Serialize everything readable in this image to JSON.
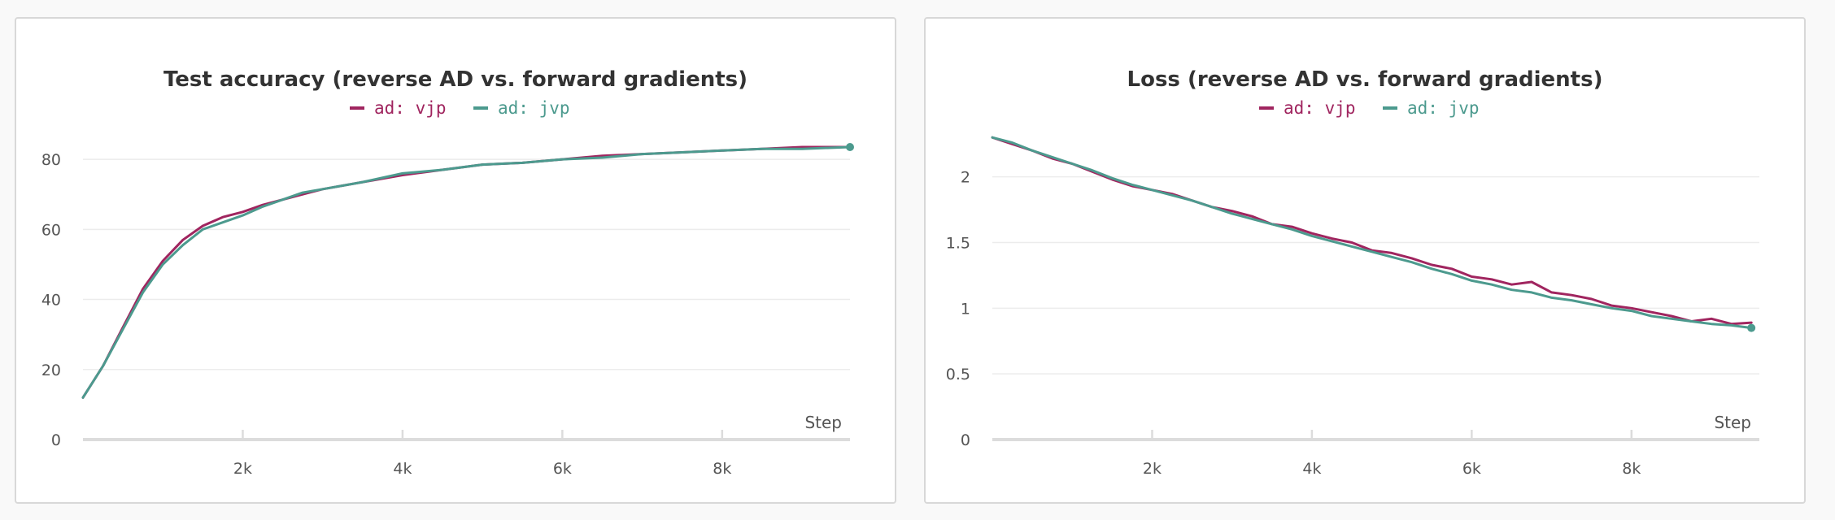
{
  "chart_data": [
    {
      "type": "line",
      "title": "Test accuracy (reverse AD vs. forward gradients)",
      "xlabel": "Step",
      "ylabel": "",
      "xlim": [
        0,
        9600
      ],
      "ylim": [
        0,
        90
      ],
      "xticks": [
        2000,
        4000,
        6000,
        8000
      ],
      "xtick_labels": [
        "2k",
        "4k",
        "6k",
        "8k"
      ],
      "yticks": [
        0,
        20,
        40,
        60,
        80
      ],
      "ytick_labels": [
        "0",
        "20",
        "40",
        "60",
        "80"
      ],
      "grid": true,
      "legend": "top-center",
      "x": [
        0,
        250,
        500,
        750,
        1000,
        1250,
        1500,
        1750,
        2000,
        2250,
        2500,
        2750,
        3000,
        3500,
        4000,
        4500,
        5000,
        5500,
        6000,
        6500,
        7000,
        7500,
        8000,
        8500,
        9000,
        9600
      ],
      "series": [
        {
          "name": "ad: vjp",
          "color": "#a0255f",
          "values": [
            12,
            21,
            32,
            43,
            51,
            57,
            61,
            63.5,
            65,
            67,
            68.5,
            70,
            71.5,
            73.5,
            75.5,
            77,
            78.5,
            79,
            80,
            81,
            81.5,
            82,
            82.5,
            83,
            83.5,
            83.5
          ]
        },
        {
          "name": "ad: jvp",
          "color": "#4c9a8e",
          "values": [
            12,
            21,
            31.5,
            42,
            50,
            55.5,
            60,
            62,
            64,
            66.5,
            68.5,
            70.5,
            71.5,
            73.5,
            76,
            77,
            78.5,
            79,
            80,
            80.5,
            81.5,
            82,
            82.5,
            83,
            83,
            83.5
          ]
        }
      ]
    },
    {
      "type": "line",
      "title": "Loss (reverse AD vs. forward gradients)",
      "xlabel": "Step",
      "ylabel": "",
      "xlim": [
        0,
        9600
      ],
      "ylim": [
        0,
        2.4
      ],
      "xticks": [
        2000,
        4000,
        6000,
        8000
      ],
      "xtick_labels": [
        "2k",
        "4k",
        "6k",
        "8k"
      ],
      "yticks": [
        0,
        0.5,
        1,
        1.5,
        2
      ],
      "ytick_labels": [
        "0",
        "0.5",
        "1",
        "1.5",
        "2"
      ],
      "grid": true,
      "legend": "top-center",
      "x": [
        0,
        250,
        500,
        750,
        1000,
        1250,
        1500,
        1750,
        2000,
        2250,
        2500,
        2750,
        3000,
        3250,
        3500,
        3750,
        4000,
        4250,
        4500,
        4750,
        5000,
        5250,
        5500,
        5750,
        6000,
        6250,
        6500,
        6750,
        7000,
        7250,
        7500,
        7750,
        8000,
        8250,
        8500,
        8750,
        9000,
        9250,
        9500
      ],
      "series": [
        {
          "name": "ad: vjp",
          "color": "#a0255f",
          "values": [
            2.3,
            2.25,
            2.2,
            2.14,
            2.1,
            2.04,
            1.98,
            1.93,
            1.9,
            1.87,
            1.82,
            1.77,
            1.74,
            1.7,
            1.64,
            1.62,
            1.57,
            1.53,
            1.5,
            1.44,
            1.42,
            1.38,
            1.33,
            1.3,
            1.24,
            1.22,
            1.18,
            1.2,
            1.12,
            1.1,
            1.07,
            1.02,
            1.0,
            0.97,
            0.94,
            0.9,
            0.92,
            0.88,
            0.89
          ]
        },
        {
          "name": "ad: jvp",
          "color": "#4c9a8e",
          "values": [
            2.3,
            2.26,
            2.2,
            2.15,
            2.1,
            2.05,
            1.99,
            1.94,
            1.9,
            1.86,
            1.82,
            1.77,
            1.72,
            1.68,
            1.64,
            1.6,
            1.55,
            1.51,
            1.47,
            1.43,
            1.39,
            1.35,
            1.3,
            1.26,
            1.21,
            1.18,
            1.14,
            1.12,
            1.08,
            1.06,
            1.03,
            1.0,
            0.98,
            0.94,
            0.92,
            0.9,
            0.88,
            0.87,
            0.85
          ]
        }
      ]
    }
  ]
}
